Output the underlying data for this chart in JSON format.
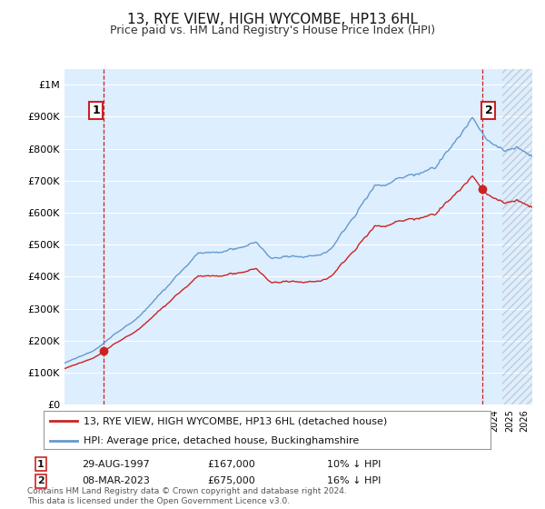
{
  "title": "13, RYE VIEW, HIGH WYCOMBE, HP13 6HL",
  "subtitle": "Price paid vs. HM Land Registry's House Price Index (HPI)",
  "ylim": [
    0,
    1050000
  ],
  "yticks": [
    0,
    100000,
    200000,
    300000,
    400000,
    500000,
    600000,
    700000,
    800000,
    900000,
    1000000
  ],
  "ytick_labels": [
    "£0",
    "£100K",
    "£200K",
    "£300K",
    "£400K",
    "£500K",
    "£600K",
    "£700K",
    "£800K",
    "£900K",
    "£1M"
  ],
  "xlim_start": 1995.0,
  "xlim_end": 2026.5,
  "hpi_color": "#6699cc",
  "price_color": "#cc2222",
  "sale1_x": 1997.65,
  "sale1_y": 167000,
  "sale1_label": "1",
  "sale1_date": "29-AUG-1997",
  "sale1_price": "£167,000",
  "sale1_hpi": "10% ↓ HPI",
  "sale2_x": 2023.18,
  "sale2_y": 675000,
  "sale2_label": "2",
  "sale2_date": "08-MAR-2023",
  "sale2_price": "£675,000",
  "sale2_hpi": "16% ↓ HPI",
  "legend_label1": "13, RYE VIEW, HIGH WYCOMBE, HP13 6HL (detached house)",
  "legend_label2": "HPI: Average price, detached house, Buckinghamshire",
  "footer": "Contains HM Land Registry data © Crown copyright and database right 2024.\nThis data is licensed under the Open Government Licence v3.0.",
  "background_color": "#ffffff",
  "plot_background": "#ddeeff",
  "grid_color": "#ffffff",
  "hatch_start": 2024.5,
  "title_fontsize": 11,
  "subtitle_fontsize": 9,
  "tick_fontsize": 8
}
